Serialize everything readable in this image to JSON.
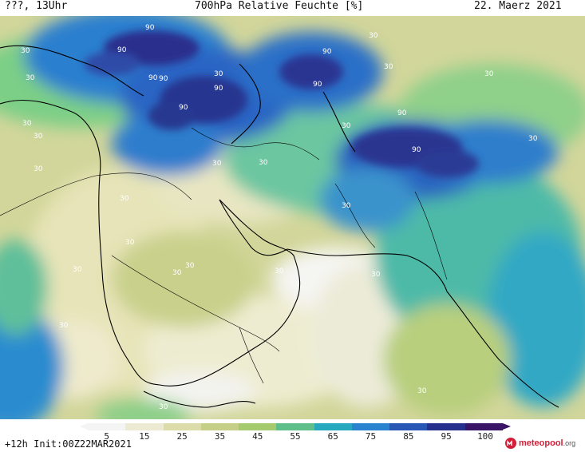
{
  "header": {
    "left": "???, 13Uhr",
    "title": "700hPa Relative Feuchte [%]",
    "date": "22. Maerz 2021"
  },
  "map": {
    "labels": [
      "90",
      "90",
      "90",
      "90",
      "90",
      "90",
      "90",
      "90",
      "90",
      "90",
      "30",
      "30",
      "30",
      "30",
      "30",
      "30",
      "30",
      "30",
      "30",
      "30",
      "30",
      "30",
      "30",
      "30",
      "30",
      "30",
      "30",
      "30",
      "30",
      "30",
      "30",
      "30",
      "30",
      "30"
    ]
  },
  "legend": {
    "ticks": [
      "5",
      "15",
      "25",
      "35",
      "45",
      "55",
      "65",
      "75",
      "85",
      "95",
      "100"
    ],
    "colors": [
      "#f4f4f4",
      "#ecead2",
      "#dcdcaa",
      "#c5cf87",
      "#a6cb6e",
      "#5fbf8a",
      "#26a9be",
      "#2a83cf",
      "#2856b5",
      "#28308e",
      "#3a1467"
    ]
  },
  "footer": {
    "init": "+12h Init:00Z22MAR2021",
    "brand": "meteopool",
    "brand_suffix": ".org"
  }
}
